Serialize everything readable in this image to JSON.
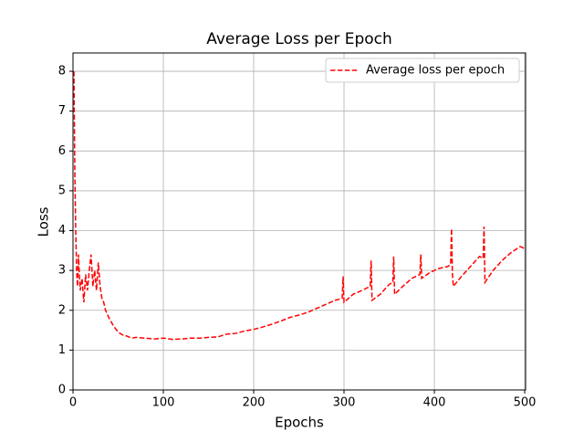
{
  "chart_data": {
    "type": "line",
    "title": "Average Loss per Epoch",
    "x_label": "Epochs",
    "y_label": "Loss",
    "x": [
      1,
      2,
      3,
      4,
      5,
      6,
      7,
      8,
      10,
      12,
      14,
      16,
      18,
      20,
      22,
      24,
      26,
      28,
      30,
      32,
      34,
      36,
      38,
      40,
      45,
      50,
      55,
      60,
      65,
      70,
      80,
      90,
      100,
      110,
      120,
      130,
      140,
      150,
      160,
      170,
      180,
      190,
      200,
      210,
      220,
      230,
      240,
      250,
      260,
      270,
      280,
      290,
      298,
      299,
      300,
      310,
      320,
      329,
      330,
      331,
      340,
      350,
      354,
      355,
      356,
      365,
      375,
      384,
      385,
      386,
      395,
      405,
      415,
      418,
      419,
      420,
      421,
      430,
      440,
      450,
      454,
      455,
      456,
      465,
      475,
      485,
      495,
      500
    ],
    "series": [
      {
        "name": "Average loss per epoch",
        "color": "#ff0000",
        "linestyle": "dashed",
        "values": [
          8.0,
          5.5,
          4.0,
          3.0,
          2.6,
          3.4,
          2.9,
          2.5,
          2.8,
          2.2,
          2.9,
          2.5,
          3.0,
          3.4,
          2.6,
          3.0,
          2.5,
          3.2,
          2.6,
          2.3,
          2.2,
          2.0,
          1.9,
          1.8,
          1.6,
          1.45,
          1.38,
          1.35,
          1.3,
          1.32,
          1.3,
          1.28,
          1.3,
          1.27,
          1.28,
          1.3,
          1.3,
          1.32,
          1.33,
          1.4,
          1.42,
          1.48,
          1.52,
          1.58,
          1.65,
          1.73,
          1.82,
          1.88,
          1.95,
          2.05,
          2.15,
          2.25,
          2.3,
          2.85,
          2.2,
          2.4,
          2.5,
          2.6,
          3.25,
          2.25,
          2.4,
          2.65,
          2.7,
          3.35,
          2.4,
          2.6,
          2.8,
          2.9,
          3.4,
          2.8,
          2.95,
          3.05,
          3.1,
          3.15,
          4.05,
          2.9,
          2.6,
          2.85,
          3.1,
          3.35,
          3.3,
          4.1,
          2.7,
          3.0,
          3.25,
          3.45,
          3.6,
          3.55
        ]
      }
    ],
    "xlim": [
      0,
      501
    ],
    "ylim": [
      0,
      8.46
    ],
    "xticks": [
      0,
      100,
      200,
      300,
      400,
      500
    ],
    "yticks": [
      0,
      1,
      2,
      3,
      4,
      5,
      6,
      7,
      8
    ],
    "grid": true,
    "legend": "upper right"
  }
}
